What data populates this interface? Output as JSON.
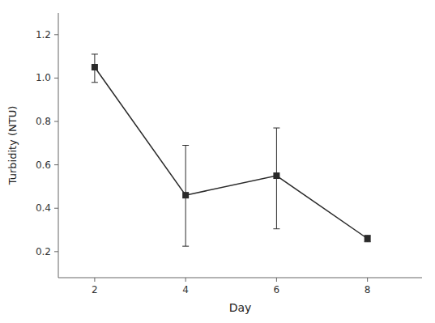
{
  "chart_data": {
    "type": "line",
    "xlabel": "Day",
    "ylabel": "Turbidity (NTU)",
    "x": [
      2,
      4,
      6,
      8
    ],
    "values": [
      1.05,
      0.46,
      0.55,
      0.26
    ],
    "error_upper": [
      0.06,
      0.23,
      0.22,
      0.015
    ],
    "error_lower": [
      0.07,
      0.235,
      0.245,
      0.015
    ],
    "xlim": [
      1.2,
      9.2
    ],
    "ylim": [
      0.08,
      1.3
    ],
    "xticks": [
      2,
      4,
      6,
      8
    ],
    "yticks": [
      0.2,
      0.4,
      0.6,
      0.8,
      {
        "value": 1.0,
        "label": "1.0"
      },
      1.2
    ],
    "color": "#2a2a2a",
    "marker": "square",
    "line_style": "solid",
    "grid": false
  }
}
